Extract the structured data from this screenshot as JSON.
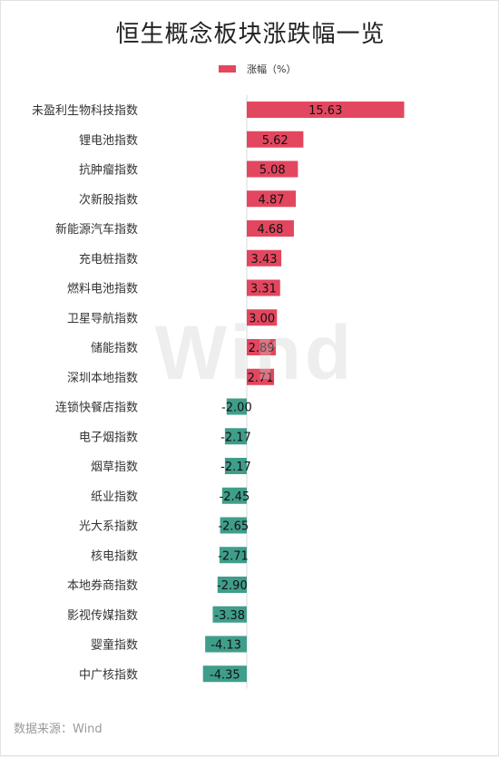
{
  "chart_data": {
    "type": "bar",
    "orientation": "horizontal",
    "title": "恒生概念板块涨跌幅一览",
    "categories": [
      "未盈利生物科技指数",
      "锂电池指数",
      "抗肿瘤指数",
      "次新股指数",
      "新能源汽车指数",
      "充电桩指数",
      "燃料电池指数",
      "卫星导航指数",
      "储能指数",
      "深圳本地指数",
      "连锁快餐店指数",
      "电子烟指数",
      "烟草指数",
      "纸业指数",
      "光大系指数",
      "核电指数",
      "本地券商指数",
      "影视传媒指数",
      "婴童指数",
      "中广核指数"
    ],
    "series": [
      {
        "name": "涨幅（%）",
        "values": [
          15.63,
          5.62,
          5.08,
          4.87,
          4.68,
          3.43,
          3.31,
          3.0,
          2.89,
          2.71,
          -2.0,
          -2.17,
          -2.17,
          -2.45,
          -2.65,
          -2.71,
          -2.9,
          -3.38,
          -4.13,
          -4.35
        ],
        "value_labels": [
          "15.63",
          "5.62",
          "5.08",
          "4.87",
          "4.68",
          "3.43",
          "3.31",
          "3.00",
          "2.89",
          "2.71",
          "-2.00",
          "-2.17",
          "-2.17",
          "-2.45",
          "-2.65",
          "-2.71",
          "-2.90",
          "-3.38",
          "-4.13",
          "-4.35"
        ]
      }
    ],
    "colors": {
      "positive": "#e3475f",
      "negative": "#3f9e8a"
    },
    "legend_position": "top-center",
    "grid": false,
    "watermark": "Wind",
    "source_note": "数据来源：Wind"
  }
}
